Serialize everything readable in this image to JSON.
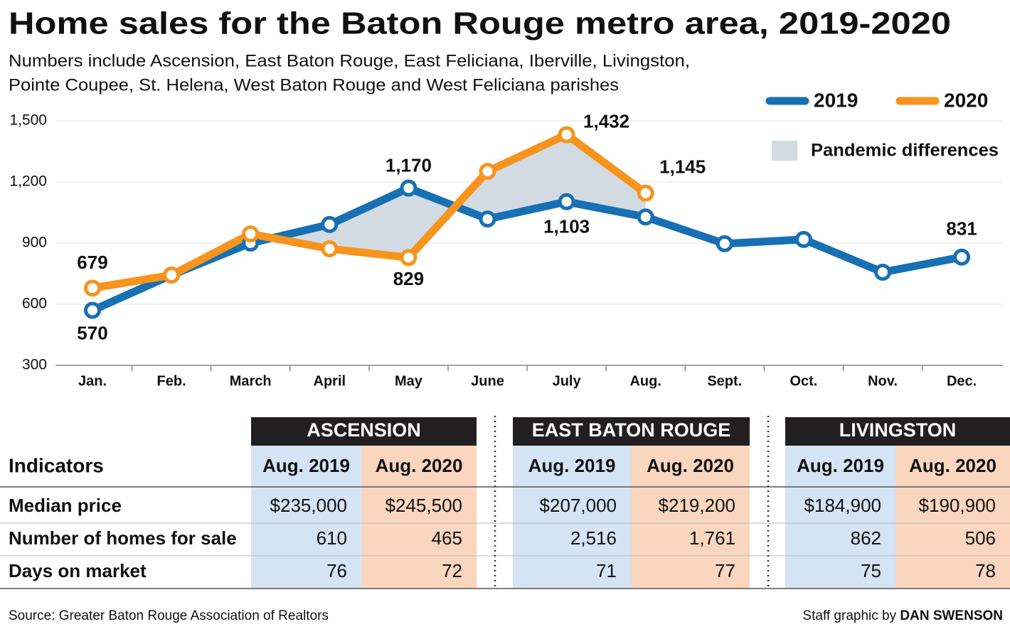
{
  "chart_data": {
    "type": "line",
    "title": "Home sales for the Baton Rouge metro area, 2019-2020",
    "subtitle": [
      "Numbers include Ascension, East Baton Rouge, East Feliciana, Iberville, Livingston,",
      "Pointe Coupee, St. Helena, West Baton Rouge and West Feliciana parishes"
    ],
    "categories": [
      "Jan.",
      "Feb.",
      "March",
      "April",
      "May",
      "June",
      "July",
      "Aug.",
      "Sept.",
      "Oct.",
      "Nov.",
      "Dec."
    ],
    "series": [
      {
        "name": "2019",
        "color": "#1670b3",
        "values": [
          570,
          743,
          900,
          991,
          1170,
          1018,
          1103,
          1028,
          897,
          918,
          757,
          831
        ],
        "value_labels": [
          "570",
          null,
          null,
          null,
          "1,170",
          null,
          "1,103",
          null,
          null,
          null,
          null,
          "831"
        ]
      },
      {
        "name": "2020",
        "color": "#f7941d",
        "values": [
          679,
          743,
          945,
          872,
          829,
          1252,
          1432,
          1145,
          null,
          null,
          null,
          null
        ],
        "value_labels": [
          "679",
          null,
          null,
          null,
          "829",
          null,
          "1,432",
          "1,145",
          null,
          null,
          null,
          null
        ]
      }
    ],
    "shaded_region": {
      "label": "Pandemic differences",
      "color": "#d3dbe2"
    },
    "ylim": [
      300,
      1500
    ],
    "yticks": [
      300,
      600,
      900,
      {
        "value": 1200,
        "label": "1,200"
      },
      {
        "value": 1500,
        "label": "1,500"
      }
    ],
    "grid": true,
    "legend": "top-right"
  },
  "table": {
    "header": "Indicators",
    "groups": [
      {
        "name": "ASCENSION",
        "columns": [
          "Aug. 2019",
          "Aug. 2020"
        ]
      },
      {
        "name": "EAST BATON ROUGE",
        "columns": [
          "Aug. 2019",
          "Aug. 2020"
        ]
      },
      {
        "name": "LIVINGSTON",
        "columns": [
          "Aug. 2019",
          "Aug. 2020"
        ]
      }
    ],
    "rows": [
      {
        "label": "Median price",
        "values": [
          "$235,000",
          "$245,500",
          "$207,000",
          "$219,200",
          "$184,900",
          "$190,900"
        ]
      },
      {
        "label": "Number of homes for sale",
        "values": [
          "610",
          "465",
          "2,516",
          "1,761",
          "862",
          "506"
        ]
      },
      {
        "label": "Days on market",
        "values": [
          "76",
          "72",
          "71",
          "77",
          "75",
          "78"
        ]
      }
    ]
  },
  "footer": {
    "source": "Source: Greater Baton Rouge Association of Realtors",
    "credit_prefix": "Staff graphic by ",
    "credit_name": "DAN SWENSON"
  }
}
